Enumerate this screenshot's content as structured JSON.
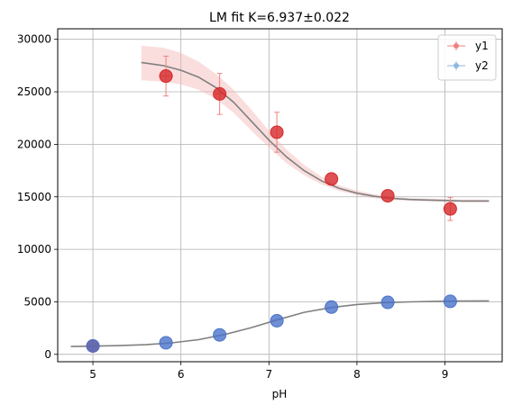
{
  "chart_data": {
    "type": "scatter",
    "title": "LM fit K=6.937±0.022",
    "xlabel": "pH",
    "ylabel": "",
    "xlim": [
      4.6,
      9.65
    ],
    "ylim": [
      -700,
      31000
    ],
    "grid": true,
    "legend_position": "top-right",
    "x_ticks": [
      5,
      6,
      7,
      8,
      9
    ],
    "y_ticks": [
      0,
      5000,
      10000,
      15000,
      20000,
      25000,
      30000
    ],
    "x_tick_labels": [
      "5",
      "6",
      "7",
      "8",
      "9"
    ],
    "y_tick_labels": [
      "0",
      "5000",
      "10000",
      "15000",
      "20000",
      "25000",
      "30000"
    ],
    "series": [
      {
        "name": "y1",
        "color": "#d62728",
        "errorbar_color": "#f08080",
        "x": [
          5.0,
          5.83,
          6.44,
          7.09,
          7.71,
          8.35,
          9.06
        ],
        "y": [
          800,
          26500,
          24800,
          21150,
          16700,
          15100,
          13850
        ],
        "yerr": [
          0,
          1900,
          1950,
          1900,
          0,
          0,
          1100
        ],
        "xerr": [
          0,
          0.08,
          0.05,
          0,
          0,
          0,
          0
        ]
      },
      {
        "name": "y2",
        "color": "#4a73c8",
        "errorbar_color": "#8fb6e0",
        "x": [
          5.0,
          5.83,
          6.44,
          7.09,
          7.71,
          8.35,
          9.06
        ],
        "y": [
          800,
          1100,
          1850,
          3200,
          4500,
          4950,
          5050
        ],
        "yerr": [
          0,
          0,
          0,
          0,
          0,
          0,
          0
        ],
        "xerr": [
          0,
          0,
          0,
          0,
          0,
          0,
          0
        ]
      }
    ],
    "fits": [
      {
        "color": "#808080",
        "band_color": "#f4b6b6",
        "x": [
          5.55,
          5.8,
          6.0,
          6.2,
          6.4,
          6.6,
          6.8,
          7.0,
          7.2,
          7.4,
          7.6,
          7.8,
          8.0,
          8.2,
          8.4,
          8.6,
          8.8,
          9.0,
          9.2,
          9.5
        ],
        "y": [
          27800,
          27500,
          27050,
          26400,
          25400,
          24000,
          22200,
          20400,
          18800,
          17500,
          16500,
          15800,
          15350,
          15050,
          14850,
          14750,
          14700,
          14650,
          14600,
          14600
        ],
        "band_lower": [
          26100,
          25950,
          25700,
          25200,
          24300,
          23000,
          21300,
          19700,
          18200,
          17050,
          16150,
          15550,
          15150,
          14880,
          14700,
          14620,
          14570,
          14530,
          14500,
          14500
        ],
        "band_upper": [
          29400,
          29200,
          28700,
          27900,
          26700,
          25200,
          23300,
          21300,
          19500,
          18050,
          16900,
          16100,
          15600,
          15250,
          15000,
          14880,
          14830,
          14780,
          14740,
          14730
        ]
      },
      {
        "color": "#808080",
        "band_color": "#b8cfe8",
        "x": [
          4.75,
          5.0,
          5.3,
          5.6,
          5.9,
          6.2,
          6.5,
          6.8,
          7.1,
          7.4,
          7.7,
          8.0,
          8.3,
          8.6,
          8.9,
          9.2,
          9.5
        ],
        "y": [
          750,
          780,
          830,
          920,
          1100,
          1400,
          1900,
          2550,
          3300,
          4000,
          4450,
          4750,
          4920,
          5000,
          5050,
          5080,
          5090
        ],
        "band_lower": [
          700,
          730,
          780,
          870,
          1050,
          1350,
          1850,
          2500,
          3250,
          3950,
          4400,
          4700,
          4880,
          4960,
          5010,
          5040,
          5050
        ],
        "band_upper": [
          800,
          830,
          880,
          970,
          1150,
          1450,
          1950,
          2600,
          3350,
          4050,
          4500,
          4800,
          4960,
          5040,
          5090,
          5120,
          5130
        ]
      }
    ]
  }
}
